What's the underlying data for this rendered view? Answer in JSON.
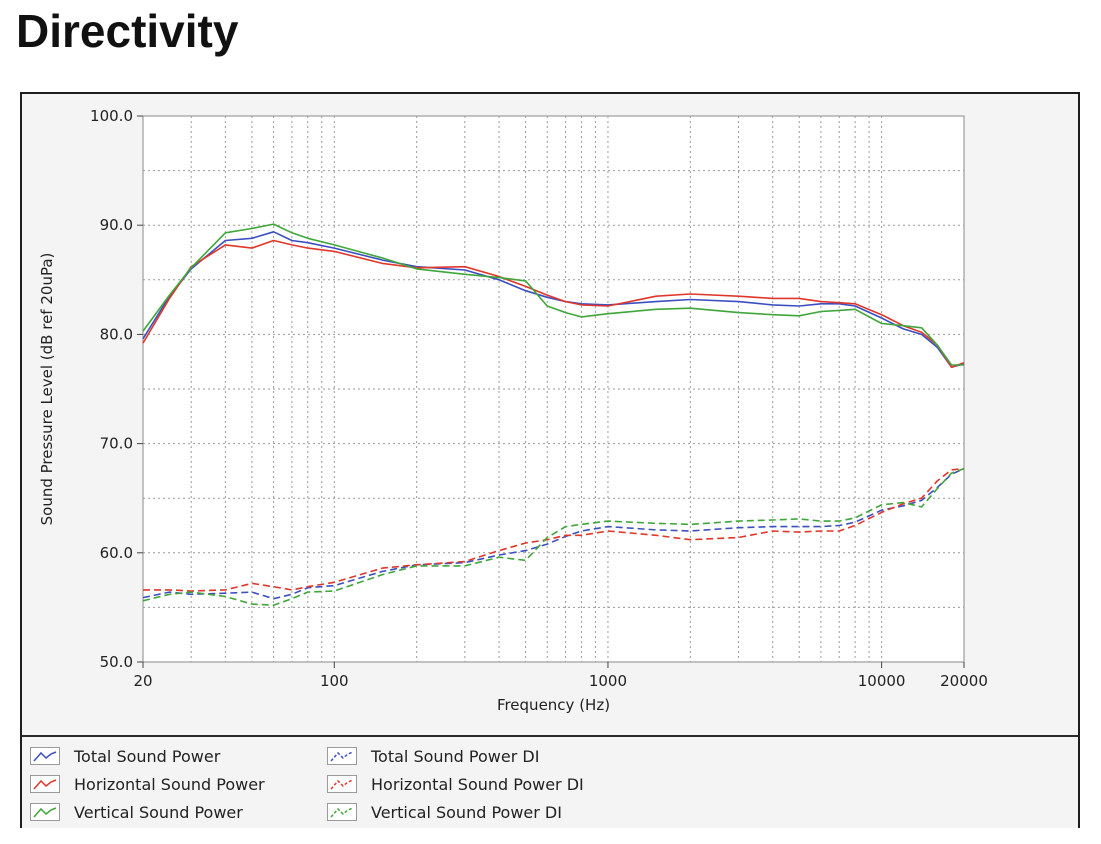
{
  "page": {
    "title": "Directivity"
  },
  "chart_data": {
    "type": "line",
    "xscale": "log",
    "xlabel": "Frequency (Hz)",
    "ylabel": "Sound Pressure Level (dB ref 20uPa)",
    "xlim": [
      20,
      20000
    ],
    "ylim": [
      50,
      100
    ],
    "xticks": [
      20,
      100,
      1000,
      10000,
      20000
    ],
    "xtick_labels": [
      "20",
      "100",
      "1000",
      "10000",
      "20000"
    ],
    "yticks": [
      50,
      60,
      70,
      80,
      90,
      100
    ],
    "ytick_labels": [
      "50.0",
      "60.0",
      "70.0",
      "80.0",
      "90.0",
      "100.0"
    ],
    "grid": true,
    "legend_position": "bottom",
    "x": [
      20,
      25,
      30,
      40,
      50,
      60,
      70,
      80,
      100,
      150,
      200,
      300,
      400,
      500,
      600,
      700,
      800,
      1000,
      1500,
      2000,
      3000,
      4000,
      5000,
      6000,
      7000,
      8000,
      10000,
      12000,
      14000,
      16000,
      18000,
      20000
    ],
    "series": [
      {
        "name": "Total Sound Power",
        "color": "#3c4fc0",
        "dash": false,
        "values": [
          79.6,
          83.5,
          86.0,
          88.6,
          88.8,
          89.4,
          88.6,
          88.4,
          87.9,
          86.8,
          86.2,
          85.9,
          85.0,
          84.0,
          83.4,
          83.0,
          82.8,
          82.7,
          83.0,
          83.2,
          83.0,
          82.7,
          82.6,
          82.8,
          82.8,
          82.6,
          81.5,
          80.5,
          80.0,
          78.8,
          77.0,
          77.3
        ]
      },
      {
        "name": "Horizontal Sound Power",
        "color": "#e0372b",
        "dash": false,
        "values": [
          79.2,
          83.3,
          86.2,
          88.2,
          87.9,
          88.6,
          88.2,
          87.9,
          87.6,
          86.5,
          86.1,
          86.2,
          85.3,
          84.4,
          83.6,
          83.0,
          82.7,
          82.6,
          83.5,
          83.7,
          83.5,
          83.3,
          83.3,
          83.0,
          82.9,
          82.8,
          81.8,
          80.8,
          80.2,
          79.0,
          77.0,
          77.4
        ]
      },
      {
        "name": "Vertical Sound Power",
        "color": "#3fa63a",
        "dash": false,
        "values": [
          80.3,
          83.6,
          86.1,
          89.3,
          89.7,
          90.1,
          89.3,
          88.8,
          88.2,
          87.0,
          86.0,
          85.5,
          85.2,
          84.9,
          82.6,
          82.0,
          81.6,
          81.9,
          82.3,
          82.4,
          82.0,
          81.8,
          81.7,
          82.1,
          82.2,
          82.3,
          81.0,
          80.8,
          80.6,
          79.0,
          77.2,
          77.2
        ]
      },
      {
        "name": "Total Sound Power DI",
        "color": "#3c4fc0",
        "dash": true,
        "values": [
          55.9,
          56.4,
          56.2,
          56.3,
          56.4,
          55.8,
          56.2,
          56.8,
          57.0,
          58.3,
          58.9,
          59.1,
          59.8,
          60.2,
          60.8,
          61.5,
          62.0,
          62.4,
          62.1,
          62.0,
          62.3,
          62.4,
          62.4,
          62.4,
          62.5,
          62.8,
          63.9,
          64.3,
          64.8,
          66.0,
          67.2,
          67.7
        ]
      },
      {
        "name": "Horizontal Sound Power DI",
        "color": "#e0372b",
        "dash": true,
        "values": [
          56.6,
          56.6,
          56.5,
          56.6,
          57.2,
          56.9,
          56.6,
          56.9,
          57.3,
          58.6,
          58.9,
          59.2,
          60.2,
          60.9,
          61.2,
          61.6,
          61.6,
          62.0,
          61.6,
          61.2,
          61.4,
          62.0,
          61.9,
          62.0,
          62.0,
          62.5,
          63.7,
          64.5,
          65.0,
          66.6,
          67.6,
          67.7
        ]
      },
      {
        "name": "Vertical Sound Power DI",
        "color": "#3fa63a",
        "dash": true,
        "values": [
          55.6,
          56.2,
          56.4,
          56.0,
          55.3,
          55.2,
          55.8,
          56.4,
          56.5,
          58.0,
          58.8,
          58.8,
          59.6,
          59.3,
          61.4,
          62.4,
          62.6,
          62.9,
          62.7,
          62.6,
          62.9,
          63.0,
          63.1,
          62.9,
          62.9,
          63.2,
          64.4,
          64.6,
          64.2,
          65.9,
          67.3,
          67.7
        ]
      }
    ]
  }
}
